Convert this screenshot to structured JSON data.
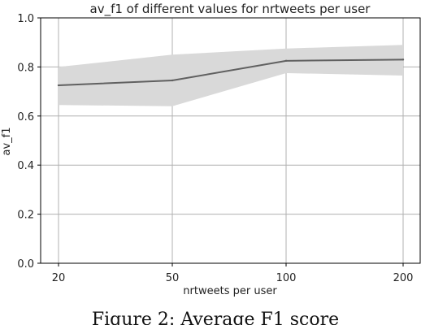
{
  "chart_data": {
    "type": "line",
    "title": "av_f1 of different values for nrtweets per user",
    "xlabel": "nrtweets per user",
    "ylabel": "av_f1",
    "categories": [
      "20",
      "50",
      "100",
      "200"
    ],
    "x_scale": "categorical",
    "series": [
      {
        "values": [
          0.725,
          0.745,
          0.825,
          0.83
        ],
        "band_upper": [
          0.8,
          0.85,
          0.875,
          0.89
        ],
        "band_lower": [
          0.645,
          0.64,
          0.775,
          0.765
        ],
        "color": "#606060",
        "band_color": "#d9d9d9"
      }
    ],
    "ylim": [
      0.0,
      1.0
    ],
    "yticks": [
      "0.0",
      "0.2",
      "0.4",
      "0.6",
      "0.8",
      "1.0"
    ],
    "grid": true
  },
  "caption": "Figure 2: Average F1 score"
}
